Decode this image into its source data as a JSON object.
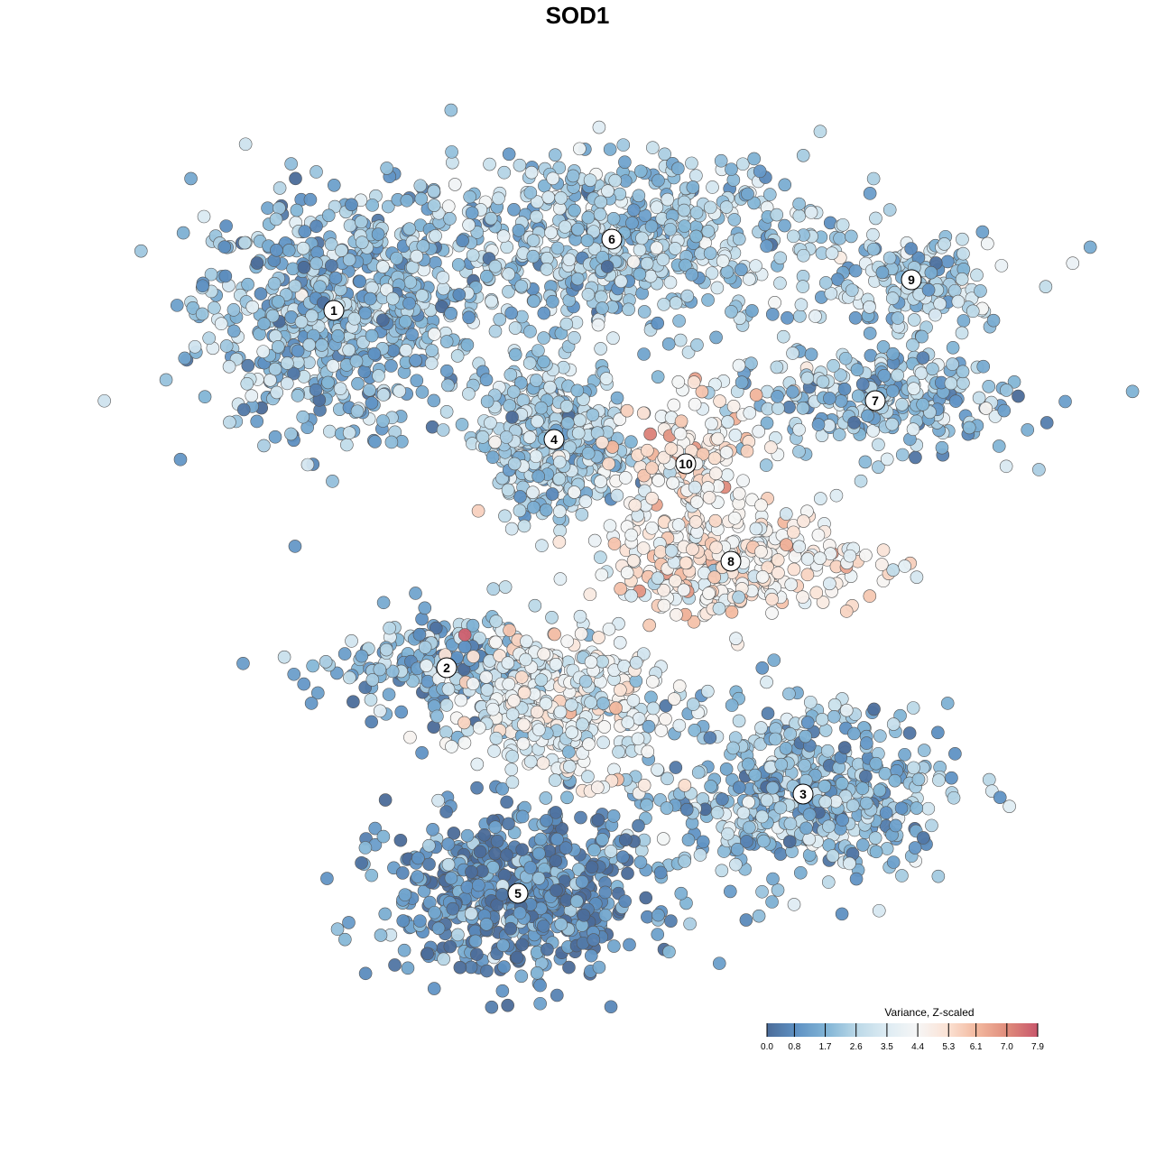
{
  "chart_data": {
    "type": "scatter",
    "title": "SOD1",
    "xlabel": "",
    "ylabel": "",
    "xlim": [
      -64,
      64
    ],
    "ylim": [
      -64,
      64
    ],
    "grid": false,
    "legend": {
      "title": "Variance, Z-scaled",
      "placement": "bottom-right",
      "ticks": [
        "0.0",
        "0.8",
        "1.7",
        "2.6",
        "3.5",
        "4.4",
        "5.3",
        "6.1",
        "7.0",
        "7.9"
      ],
      "range": [
        0,
        7.9
      ],
      "colors": [
        "#4b6c99",
        "#5f92c4",
        "#82b5d6",
        "#bcd9e8",
        "#deecf3",
        "#f6f6f6",
        "#fbe2d4",
        "#f2b79d",
        "#df8b7b",
        "#c8566b"
      ]
    },
    "clusters": [
      {
        "label": "1",
        "center": [
          -27,
          29.6
        ],
        "spread": [
          7.5,
          6.5
        ],
        "n": 650,
        "mean": 1.8
      },
      {
        "label": "2",
        "center": [
          -14.5,
          -10
        ],
        "spread": [
          6,
          3
        ],
        "n": 220,
        "mean": 1.6
      },
      {
        "label": "3",
        "center": [
          25,
          -24
        ],
        "spread": [
          8,
          5
        ],
        "n": 500,
        "mean": 1.9
      },
      {
        "label": "4",
        "center": [
          -2.6,
          15.3
        ],
        "spread": [
          4,
          4
        ],
        "n": 420,
        "mean": 2.4
      },
      {
        "label": "5",
        "center": [
          -6.6,
          -35
        ],
        "spread": [
          7,
          4.5
        ],
        "n": 600,
        "mean": 0.8
      },
      {
        "label": "6",
        "center": [
          3.8,
          37.5
        ],
        "spread": [
          12,
          5
        ],
        "n": 650,
        "mean": 2.3
      },
      {
        "label": "7",
        "center": [
          33,
          19.6
        ],
        "spread": [
          8,
          3
        ],
        "n": 260,
        "mean": 2.0
      },
      {
        "label": "8",
        "center": [
          17,
          1.8
        ],
        "spread": [
          8,
          3
        ],
        "n": 300,
        "mean": 4.6
      },
      {
        "label": "9",
        "center": [
          37,
          33
        ],
        "spread": [
          6,
          3
        ],
        "n": 160,
        "mean": 2.4
      },
      {
        "label": "10",
        "center": [
          12,
          12.6
        ],
        "spread": [
          4,
          4
        ],
        "n": 160,
        "mean": 4.7
      },
      {
        "label": "",
        "center": [
          -2,
          -14
        ],
        "spread": [
          6,
          4
        ],
        "n": 350,
        "mean": 3.9
      }
    ]
  }
}
